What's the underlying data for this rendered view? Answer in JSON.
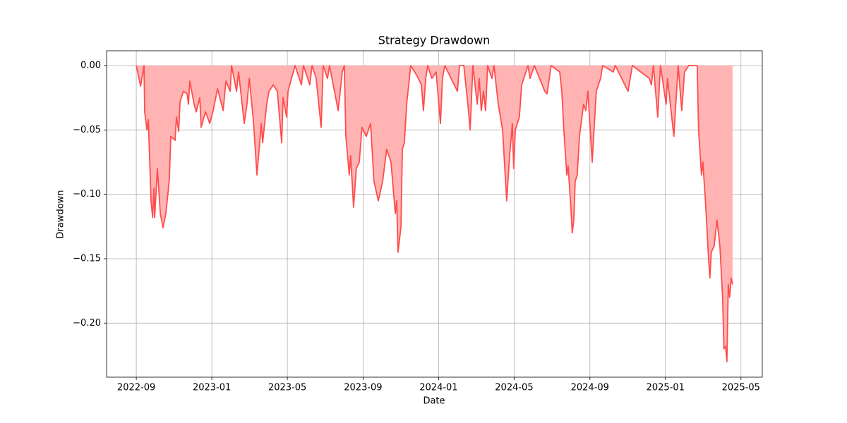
{
  "chart_data": {
    "type": "area",
    "title": "Strategy Drawdown",
    "x_label": "Date",
    "y_label": "Drawdown",
    "x": [
      2022.667,
      2022.686,
      2022.701,
      2022.704,
      2022.714,
      2022.72,
      2022.732,
      2022.739,
      2022.745,
      2022.748,
      2022.76,
      2022.773,
      2022.785,
      2022.798,
      2022.813,
      2022.819,
      2022.838,
      2022.844,
      2022.854,
      2022.86,
      2022.875,
      2022.891,
      2022.897,
      2022.903,
      2022.922,
      2022.931,
      2022.947,
      2022.953,
      2022.972,
      2022.991,
      2023.006,
      2023.025,
      2023.05,
      2023.062,
      2023.081,
      2023.087,
      2023.109,
      2023.118,
      2023.143,
      2023.155,
      2023.165,
      2023.183,
      2023.199,
      2023.211,
      2023.218,
      2023.224,
      2023.242,
      2023.252,
      2023.271,
      2023.289,
      2023.308,
      2023.314,
      2023.33,
      2023.336,
      2023.367,
      2023.395,
      2023.404,
      2023.432,
      2023.442,
      2023.46,
      2023.482,
      2023.491,
      2023.51,
      2023.519,
      2023.557,
      2023.575,
      2023.584,
      2023.591,
      2023.606,
      2023.612,
      2023.625,
      2023.637,
      2023.65,
      2023.662,
      2023.681,
      2023.7,
      2023.715,
      2023.734,
      2023.753,
      2023.771,
      2023.79,
      2023.809,
      2023.815,
      2023.821,
      2023.834,
      2023.84,
      2023.849,
      2023.859,
      2023.877,
      2023.905,
      2023.924,
      2023.933,
      2023.943,
      2023.952,
      2023.97,
      2023.989,
      2024.008,
      2024.017,
      2024.027,
      2024.083,
      2024.092,
      2024.111,
      2024.129,
      2024.139,
      2024.151,
      2024.17,
      2024.179,
      2024.188,
      2024.198,
      2024.207,
      2024.216,
      2024.235,
      2024.244,
      2024.263,
      2024.282,
      2024.3,
      2024.313,
      2024.325,
      2024.331,
      2024.338,
      2024.356,
      2024.366,
      2024.394,
      2024.403,
      2024.422,
      2024.468,
      2024.478,
      2024.496,
      2024.534,
      2024.543,
      2024.552,
      2024.565,
      2024.571,
      2024.583,
      2024.589,
      2024.596,
      2024.602,
      2024.611,
      2024.621,
      2024.639,
      2024.649,
      2024.658,
      2024.677,
      2024.695,
      2024.714,
      2024.723,
      2024.77,
      2024.779,
      2024.835,
      2024.854,
      2024.929,
      2024.938,
      2024.947,
      2024.966,
      2024.978,
      2025.003,
      2025.009,
      2025.037,
      2025.056,
      2025.072,
      2025.084,
      2025.103,
      2025.14,
      2025.146,
      2025.159,
      2025.165,
      2025.178,
      2025.19,
      2025.196,
      2025.202,
      2025.215,
      2025.227,
      2025.24,
      2025.252,
      2025.258,
      2025.265,
      2025.271,
      2025.277,
      2025.283,
      2025.29,
      2025.296
    ],
    "values": [
      0,
      -0.016,
      0,
      -0.036,
      -0.05,
      -0.042,
      -0.105,
      -0.118,
      -0.095,
      -0.118,
      -0.08,
      -0.115,
      -0.126,
      -0.114,
      -0.088,
      -0.055,
      -0.058,
      -0.04,
      -0.051,
      -0.028,
      -0.02,
      -0.022,
      -0.03,
      -0.012,
      -0.03,
      -0.036,
      -0.025,
      -0.048,
      -0.036,
      -0.045,
      -0.035,
      -0.018,
      -0.035,
      -0.012,
      -0.02,
      0,
      -0.02,
      -0.005,
      -0.045,
      -0.03,
      -0.01,
      -0.042,
      -0.085,
      -0.06,
      -0.045,
      -0.06,
      -0.03,
      -0.02,
      -0.015,
      -0.02,
      -0.06,
      -0.025,
      -0.04,
      -0.02,
      0,
      -0.015,
      0,
      -0.015,
      0,
      -0.01,
      -0.048,
      0,
      -0.01,
      0,
      -0.035,
      -0.005,
      0,
      -0.055,
      -0.085,
      -0.07,
      -0.11,
      -0.08,
      -0.075,
      -0.048,
      -0.055,
      -0.045,
      -0.09,
      -0.105,
      -0.09,
      -0.065,
      -0.075,
      -0.115,
      -0.105,
      -0.145,
      -0.125,
      -0.065,
      -0.06,
      -0.03,
      0,
      -0.008,
      -0.015,
      -0.035,
      -0.01,
      0,
      -0.01,
      -0.005,
      -0.045,
      -0.01,
      0,
      -0.02,
      0,
      0,
      -0.03,
      -0.05,
      0,
      -0.03,
      -0.01,
      -0.035,
      -0.02,
      -0.035,
      0,
      -0.01,
      0,
      -0.03,
      -0.05,
      -0.105,
      -0.07,
      -0.045,
      -0.08,
      -0.05,
      -0.04,
      -0.015,
      0,
      -0.01,
      0,
      -0.02,
      -0.022,
      0,
      -0.005,
      -0.02,
      -0.05,
      -0.085,
      -0.078,
      -0.11,
      -0.13,
      -0.12,
      -0.09,
      -0.085,
      -0.055,
      -0.03,
      -0.035,
      -0.02,
      -0.075,
      -0.02,
      -0.01,
      0,
      -0.005,
      0,
      -0.02,
      0,
      -0.01,
      -0.015,
      0,
      -0.04,
      0,
      -0.03,
      -0.01,
      -0.055,
      0,
      -0.035,
      -0.005,
      0,
      0,
      -0.05,
      -0.085,
      -0.075,
      -0.11,
      -0.15,
      -0.165,
      -0.145,
      -0.14,
      -0.12,
      -0.14,
      -0.18,
      -0.22,
      -0.218,
      -0.23,
      -0.17,
      -0.18,
      -0.165,
      -0.17
    ],
    "color": "#ff4d4d",
    "fill_color": "#ffb3b3",
    "xlim": [
      2022.536,
      2025.427
    ],
    "xticks": [
      {
        "value": 2022.667,
        "label": "2022-09"
      },
      {
        "value": 2023.0,
        "label": "2023-01"
      },
      {
        "value": 2023.333,
        "label": "2023-05"
      },
      {
        "value": 2023.667,
        "label": "2023-09"
      },
      {
        "value": 2024.0,
        "label": "2024-01"
      },
      {
        "value": 2024.333,
        "label": "2024-05"
      },
      {
        "value": 2024.667,
        "label": "2024-09"
      },
      {
        "value": 2025.0,
        "label": "2025-01"
      },
      {
        "value": 2025.333,
        "label": "2025-05"
      }
    ],
    "ylim": [
      -0.242,
      0.0115
    ],
    "yticks": [
      {
        "value": 0,
        "label": "0.00"
      },
      {
        "value": -0.05,
        "label": "−0.05"
      },
      {
        "value": -0.1,
        "label": "−0.10"
      },
      {
        "value": -0.15,
        "label": "−0.15"
      },
      {
        "value": -0.2,
        "label": "−0.20"
      }
    ],
    "grid": true
  }
}
